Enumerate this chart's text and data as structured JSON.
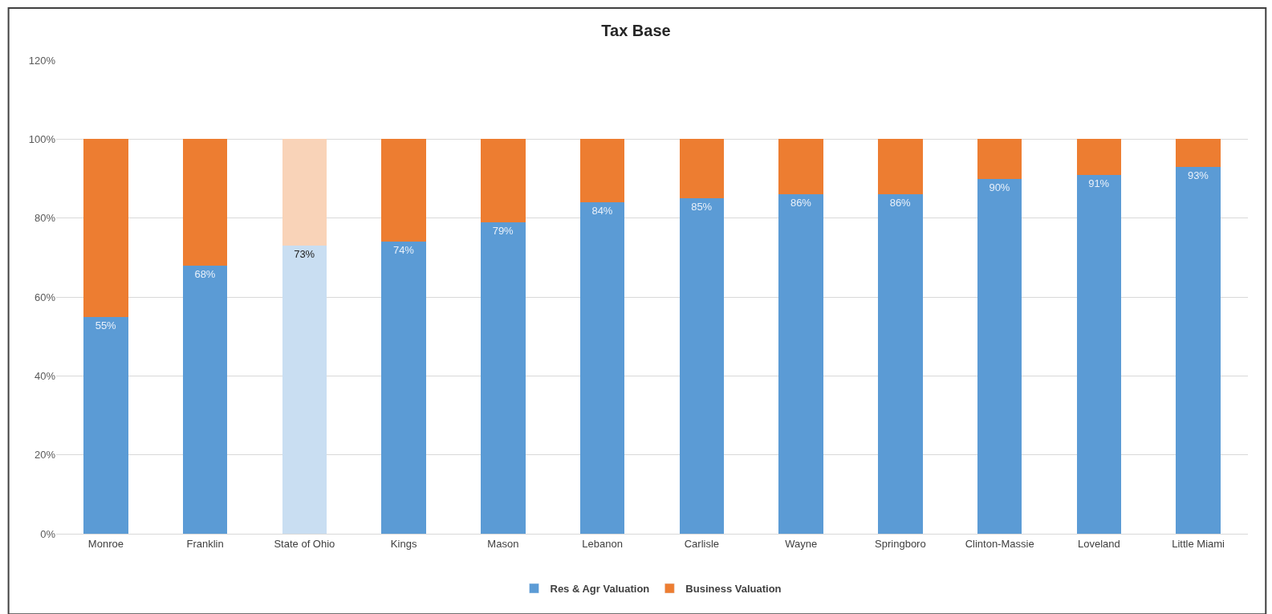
{
  "chart_data": {
    "type": "bar",
    "stacked": true,
    "title": "Tax Base",
    "categories": [
      "Monroe",
      "Franklin",
      "State of Ohio",
      "Kings",
      "Mason",
      "Lebanon",
      "Carlisle",
      "Wayne",
      "Springboro",
      "Clinton-Massie",
      "Loveland",
      "Little Miami"
    ],
    "series": [
      {
        "name": "Res & Agr Valuation",
        "color": "#5b9bd5",
        "colors": [
          "#5b9bd5",
          "#5b9bd5",
          "#c9def2",
          "#5b9bd5",
          "#5b9bd5",
          "#5b9bd5",
          "#5b9bd5",
          "#5b9bd5",
          "#5b9bd5",
          "#5b9bd5",
          "#5b9bd5",
          "#5b9bd5"
        ],
        "values": [
          55,
          68,
          73,
          74,
          79,
          84,
          85,
          86,
          86,
          90,
          91,
          93
        ],
        "value_labels": [
          "55%",
          "68%",
          "73%",
          "74%",
          "79%",
          "84%",
          "85%",
          "86%",
          "86%",
          "90%",
          "91%",
          "93%"
        ]
      },
      {
        "name": "Business Valuation",
        "color": "#ed7d31",
        "colors": [
          "#ed7d31",
          "#ed7d31",
          "#f9d3b8",
          "#ed7d31",
          "#ed7d31",
          "#ed7d31",
          "#ed7d31",
          "#ed7d31",
          "#ed7d31",
          "#ed7d31",
          "#ed7d31",
          "#ed7d31"
        ],
        "values": [
          45,
          32,
          27,
          26,
          21,
          16,
          15,
          14,
          14,
          10,
          9,
          7
        ]
      }
    ],
    "ylim": [
      0,
      120
    ],
    "yticks": [
      {
        "value": 0,
        "label": "0%"
      },
      {
        "value": 20,
        "label": "20%"
      },
      {
        "value": 40,
        "label": "40%"
      },
      {
        "value": 60,
        "label": "60%"
      },
      {
        "value": 80,
        "label": "80%"
      },
      {
        "value": 100,
        "label": "100%"
      },
      {
        "value": 120,
        "label": "120%"
      }
    ],
    "grid": "y",
    "legend": "bottom"
  }
}
